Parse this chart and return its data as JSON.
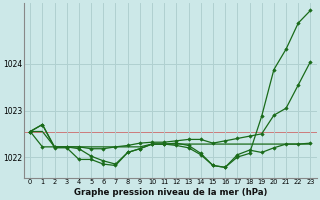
{
  "title": "Graphe pression niveau de la mer (hPa)",
  "background_color": "#cce8e8",
  "grid_color": "#b0d0d0",
  "line_color": "#1a6b1a",
  "marker_color": "#1a6b1a",
  "x_ticks": [
    0,
    1,
    2,
    3,
    4,
    5,
    6,
    7,
    8,
    9,
    10,
    11,
    12,
    13,
    14,
    15,
    16,
    17,
    18,
    19,
    20,
    21,
    22,
    23
  ],
  "y_ticks": [
    1022,
    1023,
    1024
  ],
  "ylim": [
    1021.55,
    1025.3
  ],
  "xlim": [
    -0.5,
    23.5
  ],
  "red_line_y": 1022.55,
  "series": [
    {
      "data": [
        1022.55,
        1022.7,
        1022.2,
        1022.2,
        1021.95,
        1021.95,
        1021.85,
        1021.82,
        1022.1,
        1022.18,
        1022.28,
        1022.28,
        1022.3,
        1022.25,
        1022.08,
        1021.82,
        1021.78,
        1022.05,
        1022.15,
        1022.1,
        1022.2,
        1022.28,
        1022.28,
        1022.3
      ],
      "marker": true,
      "linewidth": 0.9
    },
    {
      "data": [
        1022.55,
        1022.55,
        1022.22,
        1022.22,
        1022.22,
        1022.22,
        1022.22,
        1022.22,
        1022.22,
        1022.22,
        1022.28,
        1022.28,
        1022.28,
        1022.28,
        1022.28,
        1022.28,
        1022.28,
        1022.28,
        1022.28,
        1022.28,
        1022.28,
        1022.28,
        1022.28,
        1022.28
      ],
      "marker": false,
      "linewidth": 0.9
    },
    {
      "data": [
        1022.55,
        1022.22,
        1022.22,
        1022.22,
        1022.22,
        1022.18,
        1022.18,
        1022.22,
        1022.25,
        1022.3,
        1022.32,
        1022.32,
        1022.35,
        1022.38,
        1022.38,
        1022.3,
        1022.35,
        1022.4,
        1022.45,
        1022.5,
        1022.9,
        1023.05,
        1023.55,
        1024.05
      ],
      "marker": true,
      "linewidth": 0.9
    },
    {
      "data": [
        1022.55,
        1022.7,
        1022.22,
        1022.22,
        1022.18,
        1022.02,
        1021.92,
        1021.85,
        1022.1,
        1022.18,
        1022.28,
        1022.28,
        1022.25,
        1022.2,
        1022.05,
        1021.82,
        1021.78,
        1022.0,
        1022.08,
        1022.88,
        1023.88,
        1024.32,
        1024.88,
        1025.15
      ],
      "marker": true,
      "linewidth": 0.9
    }
  ]
}
